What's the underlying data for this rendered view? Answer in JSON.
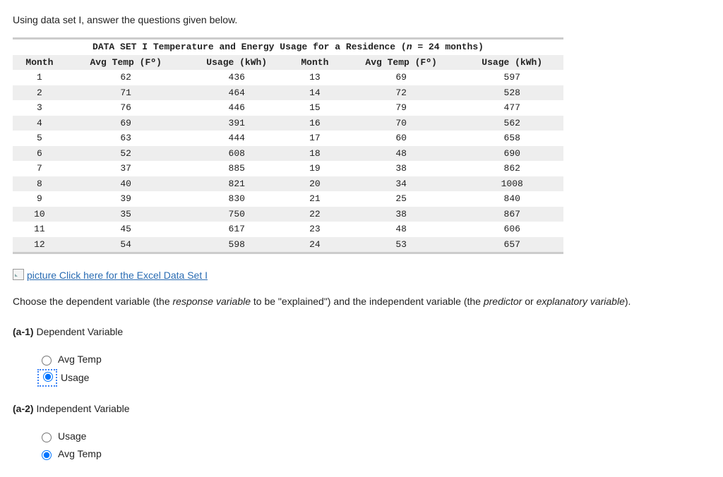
{
  "intro_text": "Using data set I, answer the questions given below.",
  "table": {
    "title_prefix": "DATA SET I Temperature and Energy Usage for a Residence (",
    "title_n_italic": "n",
    "title_suffix": " = 24 months)",
    "columns": [
      "Month",
      "Avg Temp (Fº)",
      "Usage (kWh)",
      "Month",
      "Avg Temp (Fº)",
      "Usage (kWh)"
    ],
    "rows": [
      [
        "1",
        "62",
        "436",
        "13",
        "69",
        "597"
      ],
      [
        "2",
        "71",
        "464",
        "14",
        "72",
        "528"
      ],
      [
        "3",
        "76",
        "446",
        "15",
        "79",
        "477"
      ],
      [
        "4",
        "69",
        "391",
        "16",
        "70",
        "562"
      ],
      [
        "5",
        "63",
        "444",
        "17",
        "60",
        "658"
      ],
      [
        "6",
        "52",
        "608",
        "18",
        "48",
        "690"
      ],
      [
        "7",
        "37",
        "885",
        "19",
        "38",
        "862"
      ],
      [
        "8",
        "40",
        "821",
        "20",
        "34",
        "1008"
      ],
      [
        "9",
        "39",
        "830",
        "21",
        "25",
        "840"
      ],
      [
        "10",
        "35",
        "750",
        "22",
        "38",
        "867"
      ],
      [
        "11",
        "45",
        "617",
        "23",
        "48",
        "606"
      ],
      [
        "12",
        "54",
        "598",
        "24",
        "53",
        "657"
      ]
    ],
    "row_bg_alt": [
      "#ffffff",
      "#eeeeee"
    ]
  },
  "link_text": "picture Click here for the Excel Data Set I",
  "question_text_parts": {
    "p1": "Choose the dependent variable (the ",
    "em1": "response variable",
    "p2": " to be \"explained\") and the independent variable (the ",
    "em2": "predictor",
    "p3": " or ",
    "em3": "explanatory variable",
    "p4": ")."
  },
  "a1": {
    "label": "(a-1)",
    "title": " Dependent Variable",
    "options": [
      {
        "label": "Avg Temp",
        "selected": false,
        "focused": false
      },
      {
        "label": "Usage",
        "selected": true,
        "focused": true
      }
    ]
  },
  "a2": {
    "label": "(a-2)",
    "title": " Independent Variable",
    "options": [
      {
        "label": "Usage",
        "selected": false,
        "focused": false
      },
      {
        "label": "Avg Temp",
        "selected": true,
        "focused": false
      }
    ]
  }
}
